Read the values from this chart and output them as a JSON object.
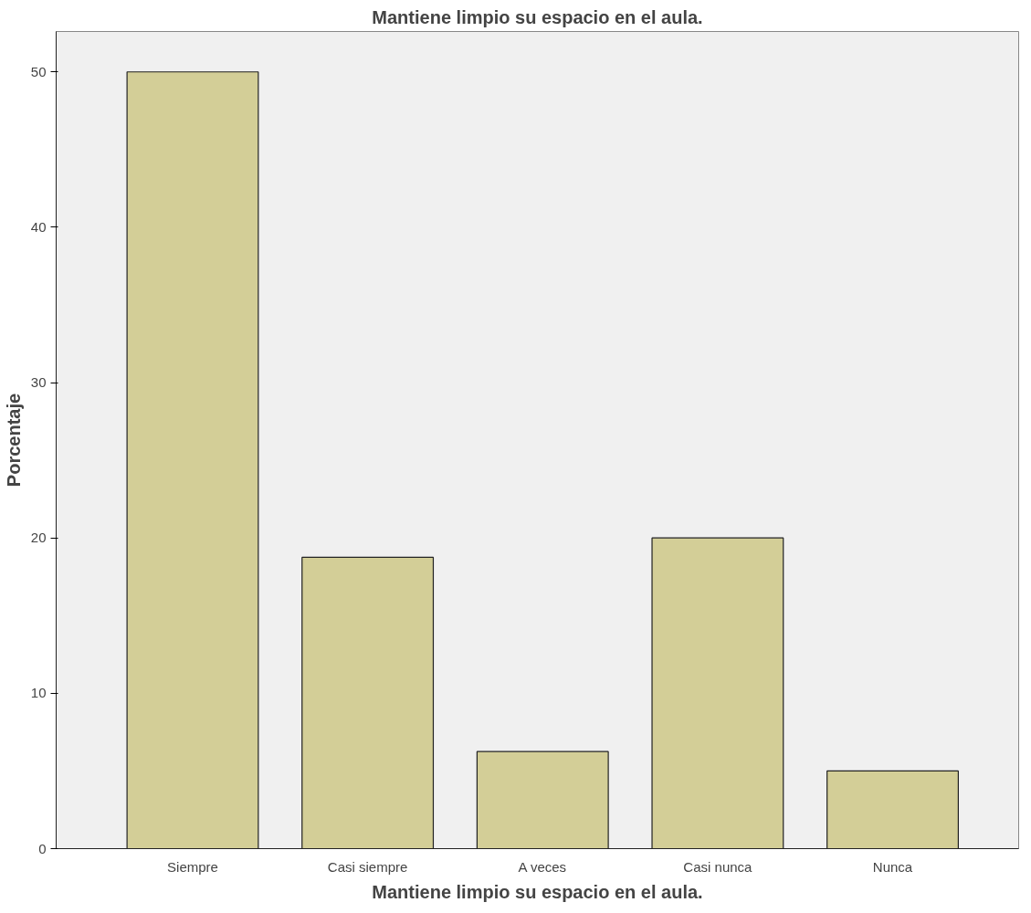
{
  "chart_data": {
    "type": "bar",
    "title": "Mantiene limpio su espacio en el aula.",
    "xlabel": "Mantiene limpio su espacio en el aula.",
    "ylabel": "Porcentaje",
    "categories": [
      "Siempre",
      "Casi siempre",
      "A veces",
      "Casi nunca",
      "Nunca"
    ],
    "values": [
      50,
      18.75,
      6.25,
      20,
      5
    ],
    "color": "#d3ce97",
    "ylim": [
      0,
      52.6
    ],
    "yticks": [
      0,
      10,
      20,
      30,
      40,
      50
    ],
    "grid": false
  }
}
